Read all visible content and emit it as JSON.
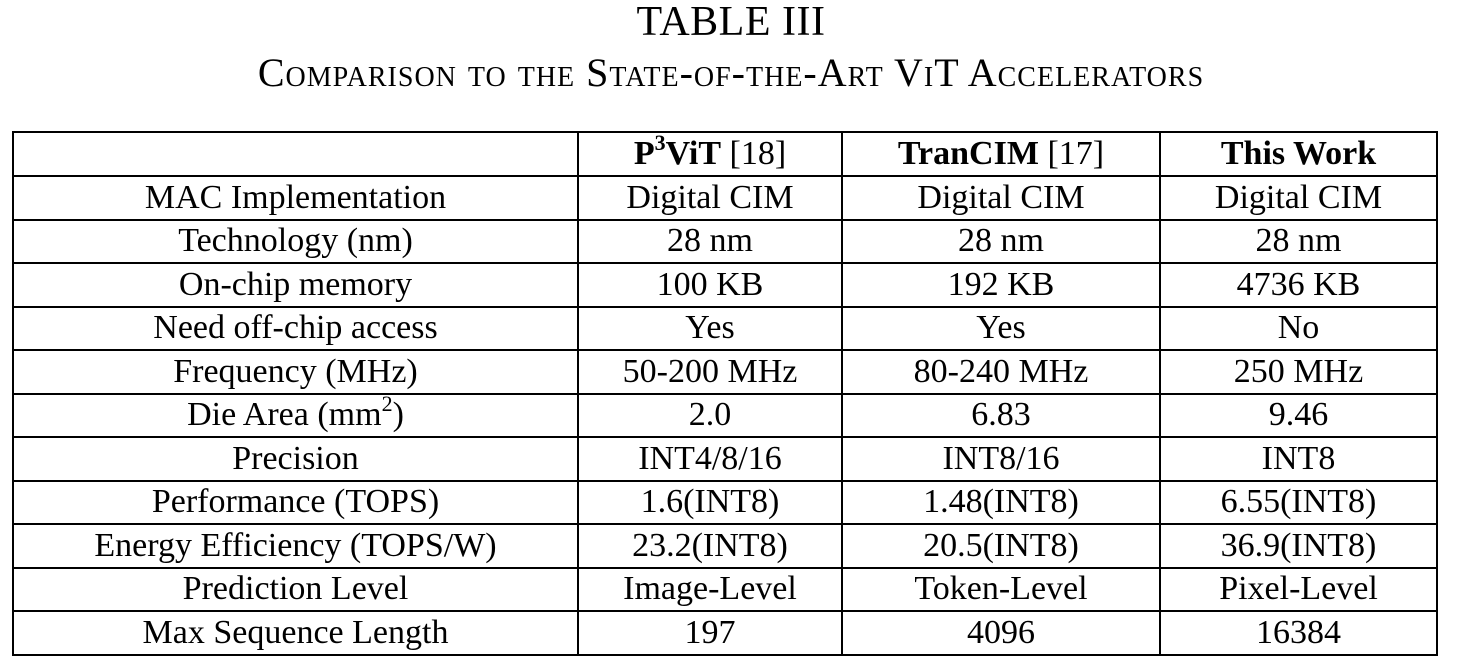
{
  "caption": {
    "number": "TABLE III",
    "title": "Comparison to the State-of-the-Art ViT Accelerators"
  },
  "table": {
    "headers": [
      {
        "name_pre": "P",
        "name_sup": "3",
        "name_post": "ViT",
        "ref": " [18]"
      },
      {
        "name": "TranCIM",
        "ref": " [17]"
      },
      {
        "name": "This Work"
      }
    ],
    "rows": [
      {
        "label": "MAC Implementation",
        "values": [
          "Digital CIM",
          "Digital CIM",
          "Digital CIM"
        ]
      },
      {
        "label": "Technology (nm)",
        "values": [
          "28 nm",
          "28 nm",
          "28 nm"
        ]
      },
      {
        "label": "On-chip memory",
        "values": [
          "100 KB",
          "192 KB",
          "4736 KB"
        ]
      },
      {
        "label": "Need off-chip access",
        "values": [
          "Yes",
          "Yes",
          "No"
        ]
      },
      {
        "label": "Frequency (MHz)",
        "values": [
          "50-200 MHz",
          "80-240 MHz",
          "250 MHz"
        ]
      },
      {
        "label_pre": "Die Area (mm",
        "label_sup": "2",
        "label_post": ")",
        "values": [
          "2.0",
          "6.83",
          "9.46"
        ]
      },
      {
        "label": "Precision",
        "values": [
          "INT4/8/16",
          "INT8/16",
          "INT8"
        ]
      },
      {
        "label": "Performance (TOPS)",
        "values": [
          "1.6(INT8)",
          "1.48(INT8)",
          "6.55(INT8)"
        ]
      },
      {
        "label": "Energy Efficiency (TOPS/W)",
        "values": [
          "23.2(INT8)",
          "20.5(INT8)",
          "36.9(INT8)"
        ]
      },
      {
        "label": "Prediction Level",
        "values": [
          "Image-Level",
          "Token-Level",
          "Pixel-Level"
        ]
      },
      {
        "label": "Max Sequence Length",
        "values": [
          "197",
          "4096",
          "16384"
        ]
      }
    ]
  }
}
